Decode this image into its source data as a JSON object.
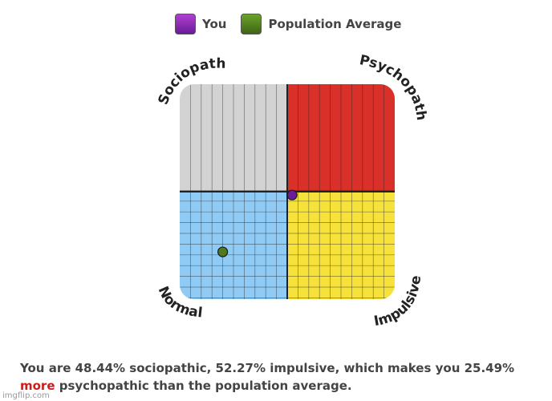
{
  "legend": [
    {
      "label": "You",
      "color": "#7b1fa2"
    },
    {
      "label": "Population Average",
      "color": "#4f7a1f"
    }
  ],
  "chart_data": {
    "type": "scatter",
    "title": "",
    "xlabel": "",
    "ylabel": "",
    "xlim": [
      0,
      100
    ],
    "ylim": [
      0,
      100
    ],
    "grid": true,
    "legend_position": "top",
    "quadrants": [
      {
        "name": "Sociopath",
        "position": "top-left",
        "color": "#d3d3d3"
      },
      {
        "name": "Psychopath",
        "position": "top-right",
        "color": "#d9302a"
      },
      {
        "name": "Normal",
        "position": "bottom-left",
        "color": "#90cbf5"
      },
      {
        "name": "Impulsive",
        "position": "bottom-right",
        "color": "#f6e23a"
      }
    ],
    "series": [
      {
        "name": "You",
        "x": [
          52.27
        ],
        "y": [
          48.44
        ],
        "color": "#6a1b9a"
      },
      {
        "name": "Population Average",
        "x": [
          20
        ],
        "y": [
          22
        ],
        "color": "#4f7a1f"
      }
    ]
  },
  "summary": {
    "part1": "You are 48.44% sociopathic, 52.27% impulsive, which makes you 25.49% ",
    "highlight": "more",
    "part2": " psychopathic than the population average."
  },
  "watermark": "imgflip.com"
}
